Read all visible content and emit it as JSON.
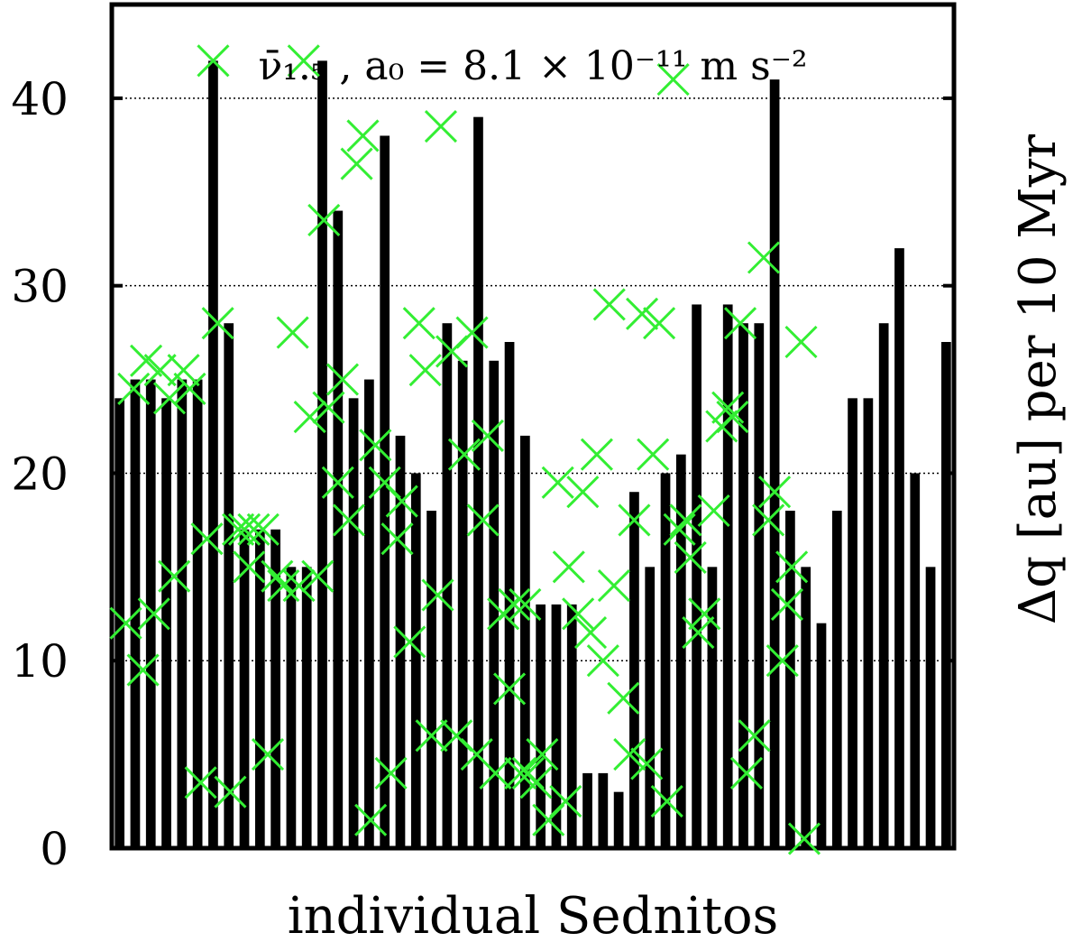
{
  "chart_data": {
    "type": "bar",
    "title": "ν̄₁.₅ , a₀ = 8.1 × 10⁻¹¹ m s⁻²",
    "xlabel": "individual Sednitos",
    "ylabel": "Δq [au] per 10 Myr",
    "ylim": [
      0,
      45
    ],
    "yticks": [
      0,
      10,
      20,
      30,
      40
    ],
    "grid": "horizontal dotted at y ticks",
    "colors": {
      "bars": "#000000",
      "markers": "#33ee33"
    },
    "series": [
      {
        "type": "bar",
        "values": [
          24,
          25,
          25,
          24,
          25,
          25,
          42,
          28,
          17,
          17,
          17,
          15,
          15,
          42,
          34,
          24,
          25,
          38,
          22,
          20,
          18,
          28,
          26,
          39,
          26,
          27,
          22,
          13,
          13,
          13,
          4,
          4,
          3,
          19,
          15,
          20,
          21,
          29,
          15,
          29,
          28,
          28,
          41,
          18,
          15,
          12,
          18,
          24,
          24,
          28,
          32,
          20,
          15,
          27
        ]
      },
      {
        "type": "scatter",
        "marker": "x",
        "points": [
          [
            0.4,
            12
          ],
          [
            0.9,
            24.5
          ],
          [
            1.5,
            9.5
          ],
          [
            1.7,
            26
          ],
          [
            2.2,
            12.5
          ],
          [
            2.6,
            25.5
          ],
          [
            3.2,
            24
          ],
          [
            3.5,
            14.5
          ],
          [
            4.1,
            25.5
          ],
          [
            4.5,
            24.5
          ],
          [
            5.2,
            3.5
          ],
          [
            5.6,
            16.5
          ],
          [
            6,
            42
          ],
          [
            6.3,
            28
          ],
          [
            7.1,
            3
          ],
          [
            7.6,
            17
          ],
          [
            8,
            17
          ],
          [
            8.3,
            15
          ],
          [
            8.6,
            17
          ],
          [
            9.2,
            17
          ],
          [
            9.5,
            5
          ],
          [
            10.1,
            14.5
          ],
          [
            10.5,
            14
          ],
          [
            11.1,
            27.5
          ],
          [
            11.5,
            14
          ],
          [
            11.8,
            42
          ],
          [
            12.2,
            23
          ],
          [
            12.7,
            14.5
          ],
          [
            13.1,
            33.5
          ],
          [
            13.4,
            23.5
          ],
          [
            14,
            19.5
          ],
          [
            14.3,
            25
          ],
          [
            14.7,
            17.5
          ],
          [
            15.2,
            36.5
          ],
          [
            15.6,
            38
          ],
          [
            16.1,
            1.5
          ],
          [
            16.4,
            21.5
          ],
          [
            17,
            19.5
          ],
          [
            17.4,
            4
          ],
          [
            17.8,
            16.5
          ],
          [
            18.1,
            18.5
          ],
          [
            18.6,
            11
          ],
          [
            19.2,
            28
          ],
          [
            19.6,
            25.5
          ],
          [
            20,
            6
          ],
          [
            20.4,
            13.5
          ],
          [
            20.6,
            38.5
          ],
          [
            21.3,
            26.5
          ],
          [
            21.6,
            6
          ],
          [
            22.1,
            21
          ],
          [
            22.6,
            27.5
          ],
          [
            22.9,
            5
          ],
          [
            23.3,
            17.5
          ],
          [
            23.6,
            22
          ],
          [
            24.1,
            4
          ],
          [
            24.6,
            12.5
          ],
          [
            25,
            8.5
          ],
          [
            25.3,
            13
          ],
          [
            25.7,
            4
          ],
          [
            26,
            13
          ],
          [
            26.2,
            4
          ],
          [
            26.7,
            3.5
          ],
          [
            27.1,
            5
          ],
          [
            27.5,
            1.5
          ],
          [
            28.1,
            19.5
          ],
          [
            28.6,
            2.5
          ],
          [
            28.8,
            15
          ],
          [
            29.4,
            12.5
          ],
          [
            29.7,
            19
          ],
          [
            30.2,
            11.5
          ],
          [
            30.6,
            21
          ],
          [
            31,
            10
          ],
          [
            31.4,
            29
          ],
          [
            31.7,
            14
          ],
          [
            32.3,
            8
          ],
          [
            32.7,
            5
          ],
          [
            33,
            17.5
          ],
          [
            33.5,
            28.5
          ],
          [
            33.8,
            4.5
          ],
          [
            34.2,
            21
          ],
          [
            34.6,
            28
          ],
          [
            35.1,
            2.5
          ],
          [
            35.5,
            41
          ],
          [
            35.9,
            17
          ],
          [
            36.3,
            17.5
          ],
          [
            36.6,
            15.5
          ],
          [
            37.1,
            11.5
          ],
          [
            37.5,
            12.5
          ],
          [
            38.1,
            18
          ],
          [
            38.6,
            22.5
          ],
          [
            39,
            23.5
          ],
          [
            39.3,
            23
          ],
          [
            39.8,
            28
          ],
          [
            40.2,
            4
          ],
          [
            40.7,
            6
          ],
          [
            41.3,
            31.5
          ],
          [
            41.6,
            17.5
          ],
          [
            42,
            19
          ],
          [
            42.5,
            10
          ],
          [
            42.8,
            13
          ],
          [
            43.1,
            15
          ],
          [
            43.7,
            27
          ],
          [
            43.9,
            0.5
          ]
        ]
      }
    ]
  }
}
